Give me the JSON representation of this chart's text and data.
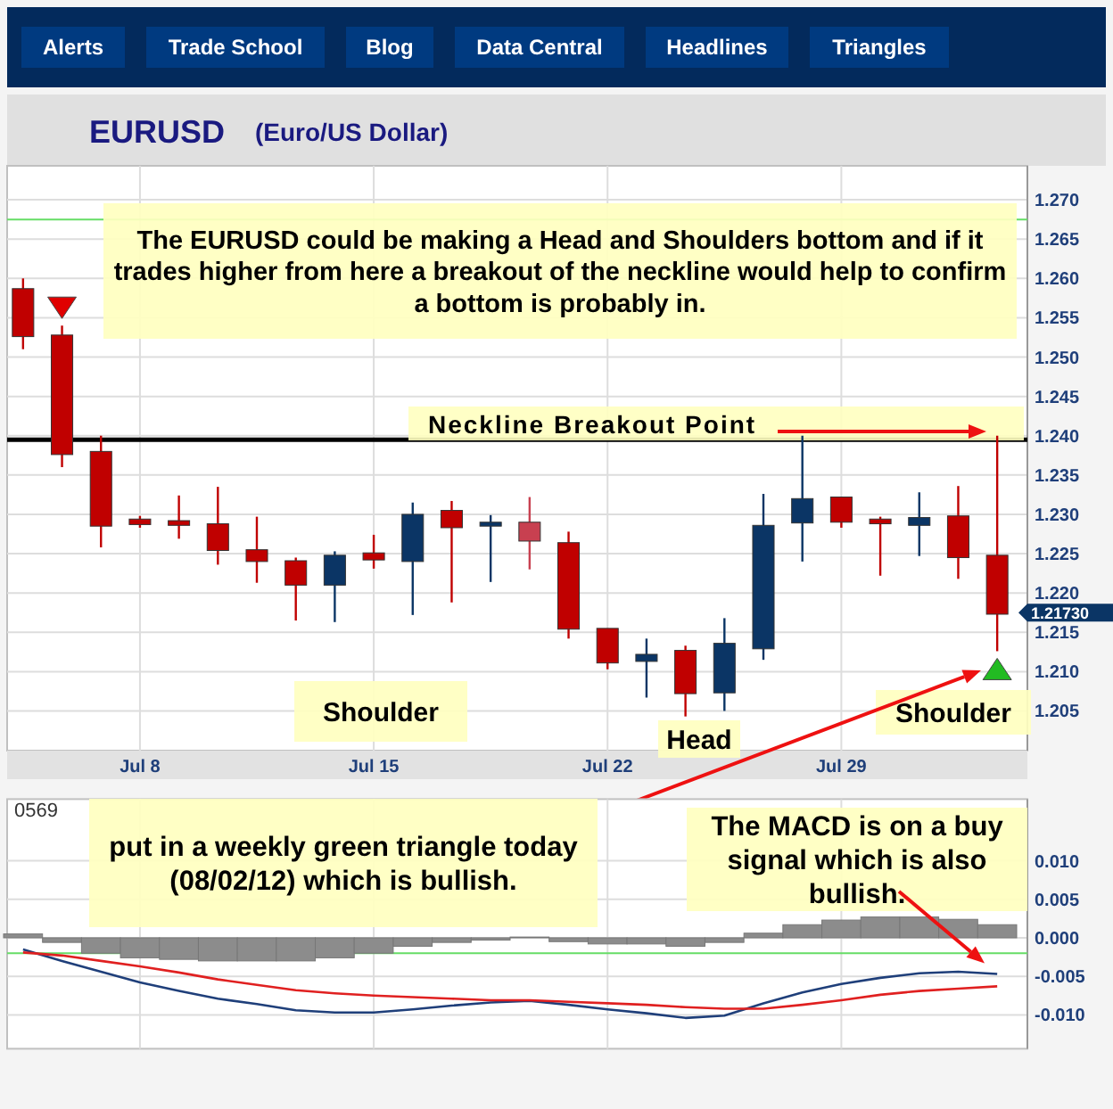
{
  "chart_data": [
    {
      "type": "candlestick",
      "title": "EURUSD",
      "subtitle": "(Euro/US Dollar)",
      "categories": [
        null,
        null,
        null,
        "Jul 8",
        null,
        null,
        null,
        null,
        null,
        "Jul 15",
        null,
        null,
        null,
        null,
        null,
        "Jul 22",
        null,
        null,
        null,
        null,
        null,
        "Jul 29",
        null,
        null,
        null,
        null
      ],
      "ohlc": [
        [
          1.2587,
          1.26,
          1.251,
          1.2526
        ],
        [
          1.2528,
          1.254,
          1.236,
          1.2376
        ],
        [
          1.238,
          1.24,
          1.2258,
          1.2285
        ],
        [
          1.2294,
          1.2298,
          1.2283,
          1.2287
        ],
        [
          1.2292,
          1.2324,
          1.2269,
          1.2286
        ],
        [
          1.2288,
          1.2335,
          1.2236,
          1.2254
        ],
        [
          1.2255,
          1.2297,
          1.2213,
          1.224
        ],
        [
          1.2241,
          1.2245,
          1.2165,
          1.221
        ],
        [
          1.221,
          1.2253,
          1.2163,
          1.2248
        ],
        [
          1.2251,
          1.2274,
          1.2231,
          1.2242
        ],
        [
          1.224,
          1.2315,
          1.2172,
          1.23
        ],
        [
          1.2305,
          1.2317,
          1.2188,
          1.2283
        ],
        [
          1.2285,
          1.2299,
          1.2214,
          1.229
        ],
        [
          1.229,
          1.2322,
          1.223,
          1.2266
        ],
        [
          1.2264,
          1.2278,
          1.2142,
          1.2154
        ],
        [
          1.2155,
          1.2155,
          1.2103,
          1.2111
        ],
        [
          1.2113,
          1.2142,
          1.2067,
          1.2122
        ],
        [
          1.2127,
          1.2133,
          1.2043,
          1.2072
        ],
        [
          1.2073,
          1.2168,
          1.205,
          1.2136
        ],
        [
          1.2129,
          1.2326,
          1.2115,
          1.2286
        ],
        [
          1.2289,
          1.24,
          1.224,
          1.232
        ],
        [
          1.2322,
          1.2322,
          1.2283,
          1.229
        ],
        [
          1.2294,
          1.2297,
          1.2222,
          1.2288
        ],
        [
          1.2286,
          1.2328,
          1.2247,
          1.2296
        ],
        [
          1.2298,
          1.2336,
          1.2218,
          1.2245
        ],
        [
          1.2248,
          1.24,
          1.2126,
          1.2173
        ]
      ],
      "colors": [
        "#c00000",
        "#c00000",
        "#c00000",
        "#c00000",
        "#c00000",
        "#c00000",
        "#c00000",
        "#c00000",
        "#0b3565",
        "#c00000",
        "#0b3565",
        "#c00000",
        "#0b3565",
        "#c84050",
        "#c00000",
        "#c00000",
        "#0b3565",
        "#c00000",
        "#0b3565",
        "#0b3565",
        "#0b3565",
        "#c00000",
        "#c00000",
        "#0b3565",
        "#c00000",
        "#c00000"
      ],
      "ylim": [
        1.2,
        1.274
      ],
      "yticks": [
        {
          "value": 1.205,
          "label": "1.205"
        },
        {
          "value": 1.21,
          "label": "1.210"
        },
        {
          "value": 1.215,
          "label": "1.215"
        },
        {
          "value": 1.22,
          "label": "1.220"
        },
        {
          "value": 1.225,
          "label": "1.225"
        },
        {
          "value": 1.23,
          "label": "1.230"
        },
        {
          "value": 1.235,
          "label": "1.235"
        },
        {
          "value": 1.24,
          "label": "1.240"
        },
        {
          "value": 1.245,
          "label": "1.245"
        },
        {
          "value": 1.25,
          "label": "1.250"
        },
        {
          "value": 1.255,
          "label": "1.255"
        },
        {
          "value": 1.26,
          "label": "1.260"
        },
        {
          "value": 1.265,
          "label": "1.265"
        },
        {
          "value": 1.27,
          "label": "1.270"
        }
      ],
      "grid": true,
      "ref_lines": [
        {
          "axis": "y",
          "value": 1.2395,
          "label": "Neckline Breakout Point",
          "color": "#000000"
        },
        {
          "axis": "y",
          "value": 1.2675,
          "color": "#66dd66"
        }
      ],
      "annotations": [
        "Alerts",
        "Trade School",
        "Blog",
        "Data Central",
        "Headlines",
        "Triangles",
        "The EURUSD could be making a Head and Shoulders bottom and if it trades higher from here a breakout of the neckline would help to confirm a bottom is probably in.",
        "Shoulder",
        "Head",
        "Shoulder",
        "1.21730"
      ]
    },
    {
      "type": "bar",
      "categories": [
        null,
        null,
        null,
        null,
        null,
        null,
        null,
        null,
        null,
        null,
        null,
        null,
        null,
        null,
        null,
        null,
        null,
        null,
        null,
        null,
        null,
        null,
        null,
        null,
        null,
        null
      ],
      "series": [
        {
          "color": "#8c8c8c",
          "values": [
            0.0005,
            -0.0006,
            -0.002,
            -0.0026,
            -0.0028,
            -0.003,
            -0.003,
            -0.003,
            -0.0026,
            -0.002,
            -0.0011,
            -0.0006,
            -0.0003,
            0.0001,
            -0.0005,
            -0.0008,
            -0.0008,
            -0.0011,
            -0.0006,
            0.0006,
            0.0017,
            0.0023,
            0.0027,
            0.0027,
            0.0024,
            0.0017
          ]
        },
        {
          "type": "line",
          "color": "#1f3f7a",
          "values": [
            -0.0015,
            -0.003,
            -0.0044,
            -0.0058,
            -0.0069,
            -0.0079,
            -0.0086,
            -0.0094,
            -0.0097,
            -0.0097,
            -0.0093,
            -0.0088,
            -0.0084,
            -0.0082,
            -0.0087,
            -0.0093,
            -0.0098,
            -0.0104,
            -0.0101,
            -0.0085,
            -0.0071,
            -0.006,
            -0.0052,
            -0.0046,
            -0.0044,
            -0.0047
          ]
        },
        {
          "type": "line",
          "color": "#e02020",
          "values": [
            -0.0019,
            -0.0023,
            -0.003,
            -0.0037,
            -0.0045,
            -0.0054,
            -0.0061,
            -0.0068,
            -0.0072,
            -0.0075,
            -0.0077,
            -0.0079,
            -0.0081,
            -0.0081,
            -0.0083,
            -0.0085,
            -0.0087,
            -0.009,
            -0.0092,
            -0.0092,
            -0.0087,
            -0.0081,
            -0.0074,
            -0.0069,
            -0.0066,
            -0.0063
          ]
        }
      ],
      "ylim": [
        -0.0144,
        0.018
      ],
      "yticks": [
        {
          "value": 0.01,
          "label": "0.010"
        },
        {
          "value": 0.005,
          "label": "0.005"
        },
        {
          "value": 0,
          "label": "0.000"
        },
        {
          "value": -0.005,
          "label": "-0.005"
        },
        {
          "value": -0.01,
          "label": "-0.010"
        }
      ],
      "tick_labels": "y",
      "grid": true,
      "ref_lines": [
        {
          "axis": "y",
          "value": -0.002,
          "color": "#66dd66"
        }
      ],
      "annotations": [
        "put in a weekly green triangle today (08/02/12) which is bullish.",
        {
          "text": "The MACD is on a buy signal which is also bullish.",
          "y": -0.0047
        },
        "0569"
      ]
    }
  ]
}
